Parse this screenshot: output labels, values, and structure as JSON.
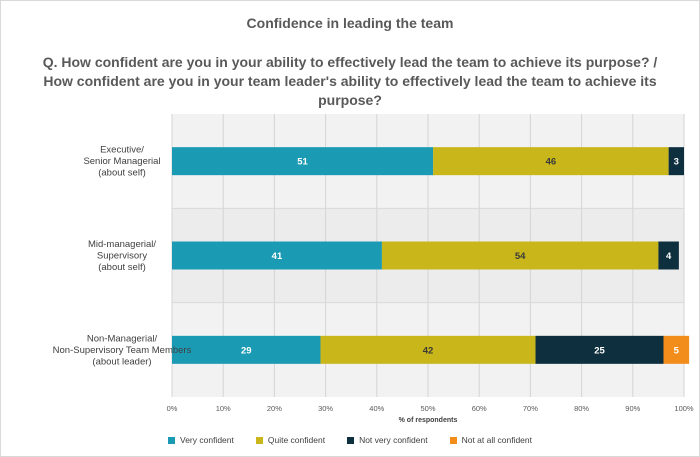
{
  "chart_data": {
    "type": "bar",
    "orientation": "horizontal",
    "stacked": true,
    "title": "Confidence in leading the team",
    "subtitle": "Q. How confident are you in your ability to effectively lead the team to achieve its purpose? / How confident are you in your team leader's ability to effectively lead the team to achieve its purpose?",
    "xlabel": "% of respondents",
    "ylabel": "",
    "xlim": [
      0,
      100
    ],
    "x_ticks": [
      "0%",
      "10%",
      "20%",
      "30%",
      "40%",
      "50%",
      "60%",
      "70%",
      "80%",
      "90%",
      "100%"
    ],
    "categories": [
      [
        "Executive/",
        "Senior Managerial",
        "(about self)"
      ],
      [
        "Mid-managerial/",
        "Supervisory",
        "(about self)"
      ],
      [
        "Non-Managerial/",
        "Non-Supervisory Team Members",
        "(about leader)"
      ]
    ],
    "series": [
      {
        "name": "Very confident",
        "color": "#1B9AB3",
        "label_color": "#ffffff",
        "values": [
          51,
          41,
          29
        ]
      },
      {
        "name": "Quite confident",
        "color": "#C8B61B",
        "label_color": "#3a3a3a",
        "values": [
          46,
          54,
          42
        ]
      },
      {
        "name": "Not very confident",
        "color": "#0E2F3E",
        "label_color": "#ffffff",
        "values": [
          3,
          4,
          25
        ]
      },
      {
        "name": "Not at all confident",
        "color": "#F28C1A",
        "label_color": "#ffffff",
        "values": [
          0,
          0,
          5
        ]
      }
    ],
    "legend_position": "bottom",
    "grid": true
  }
}
